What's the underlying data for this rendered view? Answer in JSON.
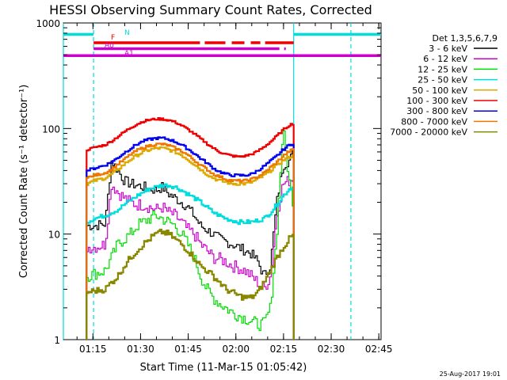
{
  "chart_data": {
    "type": "line",
    "title": "HESSI Observing Summary Count Rates, Corrected",
    "xlabel": "Start Time (11-Mar-15 01:05:42)",
    "ylabel": "Corrected Count Rate (s⁻¹ detector⁻¹)",
    "x_unit": "minutes after 01:05:42",
    "xlim": [
      0,
      100
    ],
    "ylim": [
      1,
      1000
    ],
    "y_scale": "log",
    "x_ticks": [
      "01:15",
      "01:30",
      "01:45",
      "02:00",
      "02:15",
      "02:30",
      "02:45"
    ],
    "y_ticks": [
      "1",
      "10",
      "100",
      "1000"
    ],
    "legend_title": "Det 1,3,5,6,7,9",
    "legend_position": "right",
    "timestamp": "25-Aug-2017 19:01",
    "series": [
      {
        "name": "3 - 6 keV",
        "color": "#000000",
        "x": [
          7.3,
          9.5,
          13,
          15,
          17,
          19,
          21,
          23,
          25,
          27,
          29,
          31,
          33,
          35,
          37,
          39,
          41,
          43,
          45,
          47,
          49,
          51,
          53,
          55,
          57,
          59,
          61,
          63,
          65,
          67,
          69,
          71,
          72.5
        ],
        "y": [
          12,
          12,
          12.5,
          50,
          40,
          32,
          30,
          29,
          28,
          27,
          26,
          28,
          24,
          22,
          20,
          18,
          15,
          12,
          11,
          10,
          9,
          8.5,
          8,
          7.5,
          7,
          6.5,
          5.5,
          4,
          5,
          20,
          45,
          50,
          60
        ]
      },
      {
        "name": "6 - 12 keV",
        "color": "#cc00cc",
        "x": [
          7.3,
          9.5,
          13,
          15,
          17,
          19,
          21,
          23,
          25,
          27,
          29,
          31,
          33,
          35,
          37,
          39,
          41,
          43,
          45,
          47,
          49,
          51,
          53,
          55,
          57,
          59,
          61,
          63,
          65,
          67,
          69,
          71,
          72.5
        ],
        "y": [
          7.5,
          7.5,
          8,
          30,
          25,
          22,
          20,
          19,
          19,
          18,
          17,
          18,
          16,
          15,
          13,
          11,
          10,
          8,
          7,
          6,
          5.8,
          5.5,
          5,
          4.8,
          4.5,
          4,
          3.5,
          3,
          4,
          15,
          30,
          32,
          35
        ]
      },
      {
        "name": "12 - 25 keV",
        "color": "#00dd00",
        "x": [
          7.3,
          9.5,
          13,
          15,
          17,
          19,
          21,
          23,
          25,
          27,
          29,
          31,
          33,
          35,
          37,
          39,
          41,
          43,
          45,
          47,
          49,
          51,
          53,
          55,
          57,
          59,
          61,
          63,
          65,
          67,
          69,
          71,
          72.5
        ],
        "y": [
          4,
          4.2,
          4.5,
          6,
          8,
          9,
          10,
          12,
          13,
          14,
          15,
          14,
          13,
          12,
          10,
          8,
          6,
          4,
          3,
          2.5,
          2.2,
          2,
          1.8,
          1.7,
          1.6,
          1.5,
          1.4,
          1.4,
          2,
          10,
          100,
          30,
          18
        ]
      },
      {
        "name": "25 - 50 keV",
        "color": "#00dddd",
        "x": [
          7.3,
          9.5,
          13,
          15,
          17,
          19,
          21,
          23,
          25,
          27,
          29,
          31,
          33,
          35,
          37,
          39,
          41,
          43,
          45,
          47,
          49,
          51,
          53,
          55,
          57,
          59,
          61,
          63,
          65,
          67,
          69,
          71,
          72.5
        ],
        "y": [
          13,
          14,
          15,
          16,
          17,
          19,
          21,
          23,
          25,
          27,
          28,
          29,
          29,
          28,
          26,
          24,
          22,
          20,
          18,
          16,
          15,
          14,
          13.5,
          13,
          13,
          13,
          13.5,
          14,
          16,
          19,
          23,
          27,
          28
        ]
      },
      {
        "name": "50 - 100 keV",
        "color": "#ddaa00",
        "x": [
          7.3,
          9.5,
          13,
          15,
          17,
          19,
          21,
          23,
          25,
          27,
          29,
          31,
          33,
          35,
          37,
          39,
          41,
          43,
          45,
          47,
          49,
          51,
          53,
          55,
          57,
          59,
          61,
          63,
          65,
          67,
          69,
          71,
          72.5
        ],
        "y": [
          30,
          32,
          34,
          37,
          41,
          46,
          51,
          56,
          60,
          63,
          65,
          65,
          63,
          60,
          56,
          51,
          46,
          41,
          37,
          34,
          32,
          31,
          30,
          30,
          30,
          31,
          33,
          36,
          40,
          45,
          50,
          54,
          55
        ]
      },
      {
        "name": "100 - 300 keV",
        "color": "#ee0000",
        "x": [
          7.3,
          9.5,
          13,
          15,
          17,
          19,
          21,
          23,
          25,
          27,
          29,
          31,
          33,
          35,
          37,
          39,
          41,
          43,
          45,
          47,
          49,
          51,
          53,
          55,
          57,
          59,
          61,
          63,
          65,
          67,
          69,
          71,
          72.5
        ],
        "y": [
          63,
          66,
          70,
          76,
          84,
          93,
          102,
          110,
          117,
          121,
          123,
          123,
          120,
          115,
          107,
          98,
          89,
          80,
          72,
          65,
          60,
          57,
          55,
          54,
          55,
          57,
          61,
          67,
          75,
          85,
          97,
          108,
          112
        ]
      },
      {
        "name": "300 - 800 keV",
        "color": "#0000ee",
        "x": [
          7.3,
          9.5,
          13,
          15,
          17,
          19,
          21,
          23,
          25,
          27,
          29,
          31,
          33,
          35,
          37,
          39,
          41,
          43,
          45,
          47,
          49,
          51,
          53,
          55,
          57,
          59,
          61,
          63,
          65,
          67,
          69,
          71,
          72.5
        ],
        "y": [
          40,
          42,
          45,
          48,
          53,
          59,
          65,
          71,
          76,
          79,
          81,
          81,
          79,
          75,
          70,
          64,
          58,
          52,
          47,
          42,
          39,
          37,
          36,
          36,
          36,
          37,
          40,
          44,
          49,
          55,
          63,
          70,
          73
        ]
      },
      {
        "name": "800 - 7000 keV",
        "color": "#ee7700",
        "x": [
          7.3,
          9.5,
          13,
          15,
          17,
          19,
          21,
          23,
          25,
          27,
          29,
          31,
          33,
          35,
          37,
          39,
          41,
          43,
          45,
          47,
          49,
          51,
          53,
          55,
          57,
          59,
          61,
          63,
          65,
          67,
          69,
          71,
          72.5
        ],
        "y": [
          34,
          36,
          38,
          41,
          46,
          51,
          57,
          62,
          66,
          69,
          71,
          71,
          69,
          65,
          61,
          56,
          50,
          45,
          41,
          37,
          35,
          33,
          32,
          32,
          32,
          33,
          35,
          38,
          43,
          48,
          55,
          61,
          64
        ]
      },
      {
        "name": "7000 - 20000 keV",
        "color": "#888800",
        "x": [
          7.3,
          9.5,
          13,
          15,
          17,
          19,
          21,
          23,
          25,
          27,
          29,
          31,
          33,
          35,
          37,
          39,
          41,
          43,
          45,
          47,
          49,
          51,
          53,
          55,
          57,
          59,
          61,
          63,
          65,
          67,
          69,
          71,
          72.5
        ],
        "y": [
          2.8,
          2.9,
          3,
          3.5,
          4,
          5,
          6,
          7,
          8,
          9,
          10,
          10.5,
          10,
          9,
          8,
          7,
          6,
          5,
          4.5,
          4,
          3.5,
          3,
          2.8,
          2.6,
          2.5,
          2.5,
          2.8,
          3.5,
          4.5,
          6,
          7.5,
          9,
          10
        ]
      }
    ],
    "flags": [
      {
        "label": "N",
        "color": "#00dddd",
        "level": 780,
        "segments": [
          [
            -6.7,
            9.5
          ],
          [
            72.5,
            100
          ]
        ]
      },
      {
        "label": "F",
        "color": "#ee0000",
        "level": 650,
        "segments": [
          [
            9.5,
            43
          ],
          [
            44.5,
            51
          ],
          [
            53,
            57
          ],
          [
            59,
            62
          ],
          [
            63.5,
            72.5
          ]
        ]
      },
      {
        "label": "A0",
        "color": "#cc00cc",
        "level": 570,
        "segments": [
          [
            9.5,
            68
          ],
          [
            69.5,
            70
          ]
        ]
      },
      {
        "label": "A1",
        "color": "#cc00cc",
        "level": 490,
        "segments": [
          [
            -6.7,
            100
          ]
        ]
      }
    ],
    "vertical_markers": [
      {
        "x": -6.7,
        "color": "#00dddd",
        "style": "solid"
      },
      {
        "x": 9.5,
        "color": "#00dddd",
        "style": "dashed"
      },
      {
        "x": 72.5,
        "color": "#00dddd",
        "style": "solid"
      },
      {
        "x": 90.5,
        "color": "#00dddd",
        "style": "dashed"
      }
    ]
  }
}
